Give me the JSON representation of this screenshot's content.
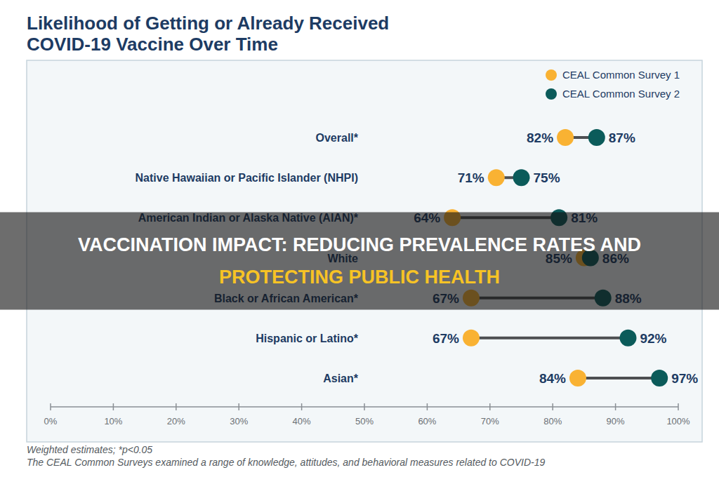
{
  "chart_data": {
    "type": "dumbbell",
    "title": "Likelihood of Getting or Already Received COVID-19 Vaccine Over Time",
    "orientation": "horizontal",
    "categories": [
      "Overall*",
      "Native Hawaiian or Pacific Islander (NHPI)",
      "American Indian or Alaska Native (AIAN)*",
      "White",
      "Black or African American*",
      "Hispanic or Latino*",
      "Asian*"
    ],
    "series": [
      {
        "name": "CEAL Common Survey 1",
        "color": "#f9b233",
        "values": [
          82,
          71,
          64,
          85,
          67,
          67,
          84
        ],
        "value_labels": [
          "82%",
          "71%",
          "64%",
          "85%",
          "67%",
          "67%",
          "84%"
        ]
      },
      {
        "name": "CEAL Common Survey 2",
        "color": "#0b5b5a",
        "values": [
          87,
          75,
          81,
          86,
          88,
          92,
          97
        ],
        "value_labels": [
          "87%",
          "75%",
          "81%",
          "86%",
          "88%",
          "92%",
          "97%"
        ]
      }
    ],
    "xlim": [
      0,
      100
    ],
    "xticks": [
      {
        "value": 0,
        "label": "0%"
      },
      {
        "value": 10,
        "label": "10%"
      },
      {
        "value": 20,
        "label": "20%"
      },
      {
        "value": 30,
        "label": "30%"
      },
      {
        "value": 40,
        "label": "40%"
      },
      {
        "value": 50,
        "label": "50%"
      },
      {
        "value": 60,
        "label": "60%"
      },
      {
        "value": 70,
        "label": "70%"
      },
      {
        "value": 80,
        "label": "80%"
      },
      {
        "value": 90,
        "label": "90%"
      },
      {
        "value": 100,
        "label": "100%"
      }
    ],
    "grid": false,
    "legend": "top-right",
    "data_labels": true,
    "footnotes": [
      "Weighted estimates; *p<0.05",
      "The CEAL Common Surveys examined a range of knowledge, attitudes, and behavioral measures related to COVID-19"
    ],
    "annotations": [
      "VACCINATION IMPACT: REDUCING PREVALENCE RATES AND PROTECTING PUBLIC HEALTH"
    ]
  }
}
